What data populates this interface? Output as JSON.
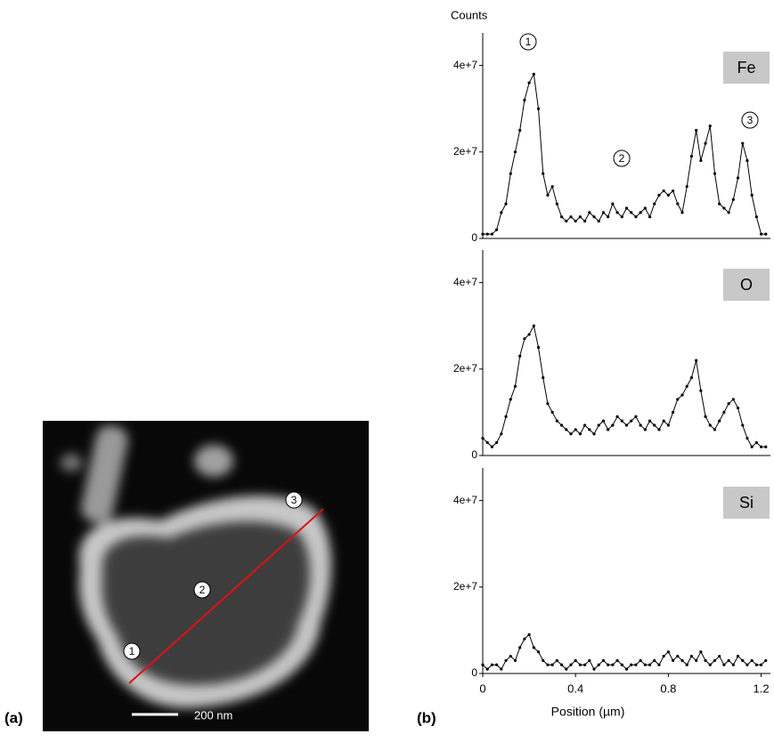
{
  "figure": {
    "panel_a": {
      "label": "(a)",
      "scale_bar": "200 nm",
      "markers": [
        "1",
        "2",
        "3"
      ]
    },
    "panel_b_label": "(b)"
  },
  "chart_data": [
    {
      "type": "line",
      "y_label": "Counts",
      "label": "Fe",
      "annotations": [
        "1",
        "2",
        "3"
      ],
      "color": "#000000",
      "x": [
        0,
        0.02,
        0.04,
        0.06,
        0.08,
        0.1,
        0.12,
        0.14,
        0.16,
        0.18,
        0.2,
        0.22,
        0.24,
        0.26,
        0.28,
        0.3,
        0.32,
        0.34,
        0.36,
        0.38,
        0.4,
        0.42,
        0.44,
        0.46,
        0.48,
        0.5,
        0.52,
        0.54,
        0.56,
        0.58,
        0.6,
        0.62,
        0.64,
        0.66,
        0.68,
        0.7,
        0.72,
        0.74,
        0.76,
        0.78,
        0.8,
        0.82,
        0.84,
        0.86,
        0.88,
        0.9,
        0.92,
        0.94,
        0.96,
        0.98,
        1.0,
        1.02,
        1.04,
        1.06,
        1.08,
        1.1,
        1.12,
        1.14,
        1.16,
        1.18,
        1.2,
        1.22
      ],
      "values": [
        1000000.0,
        1000000.0,
        1000000.0,
        2000000.0,
        6000000.0,
        8000000.0,
        15000000.0,
        20000000.0,
        25000000.0,
        32000000.0,
        36000000.0,
        38000000.0,
        30000000.0,
        15000000.0,
        10000000.0,
        12000000.0,
        8000000.0,
        5000000.0,
        4000000.0,
        5000000.0,
        4000000.0,
        5000000.0,
        4000000.0,
        6000000.0,
        5000000.0,
        4000000.0,
        6000000.0,
        5000000.0,
        8000000.0,
        6000000.0,
        5000000.0,
        7000000.0,
        6000000.0,
        5000000.0,
        6000000.0,
        7000000.0,
        5000000.0,
        8000000.0,
        10000000.0,
        11000000.0,
        10000000.0,
        11000000.0,
        8000000.0,
        6000000.0,
        12000000.0,
        19000000.0,
        25000000.0,
        18000000.0,
        22000000.0,
        26000000.0,
        15000000.0,
        8000000.0,
        7000000.0,
        6000000.0,
        9000000.0,
        14000000.0,
        22000000.0,
        18000000.0,
        10000000.0,
        5000000.0,
        1000000.0,
        1000000.0
      ],
      "xlim": [
        0,
        1.24
      ],
      "ylim": [
        0,
        50000000.0
      ],
      "yticks": [
        0,
        {
          "value": 20000000.0,
          "label": "2e+7"
        },
        {
          "value": 40000000.0,
          "label": "4e+7"
        }
      ]
    },
    {
      "type": "line",
      "label": "O",
      "color": "#000000",
      "x": [
        0,
        0.02,
        0.04,
        0.06,
        0.08,
        0.1,
        0.12,
        0.14,
        0.16,
        0.18,
        0.2,
        0.22,
        0.24,
        0.26,
        0.28,
        0.3,
        0.32,
        0.34,
        0.36,
        0.38,
        0.4,
        0.42,
        0.44,
        0.46,
        0.48,
        0.5,
        0.52,
        0.54,
        0.56,
        0.58,
        0.6,
        0.62,
        0.64,
        0.66,
        0.68,
        0.7,
        0.72,
        0.74,
        0.76,
        0.78,
        0.8,
        0.82,
        0.84,
        0.86,
        0.88,
        0.9,
        0.92,
        0.94,
        0.96,
        0.98,
        1.0,
        1.02,
        1.04,
        1.06,
        1.08,
        1.1,
        1.12,
        1.14,
        1.16,
        1.18,
        1.2,
        1.22
      ],
      "values": [
        4000000.0,
        3000000.0,
        2000000.0,
        3000000.0,
        5000000.0,
        9000000.0,
        13000000.0,
        16000000.0,
        23000000.0,
        27000000.0,
        28000000.0,
        30000000.0,
        25000000.0,
        18000000.0,
        12000000.0,
        10000000.0,
        8000000.0,
        7000000.0,
        6000000.0,
        5000000.0,
        6000000.0,
        5000000.0,
        7000000.0,
        6000000.0,
        5000000.0,
        7000000.0,
        8000000.0,
        6000000.0,
        7000000.0,
        9000000.0,
        8000000.0,
        7000000.0,
        8000000.0,
        9000000.0,
        7000000.0,
        6000000.0,
        8000000.0,
        7000000.0,
        6000000.0,
        8000000.0,
        7000000.0,
        10000000.0,
        13000000.0,
        14000000.0,
        16000000.0,
        18000000.0,
        22000000.0,
        15000000.0,
        9000000.0,
        7000000.0,
        6000000.0,
        8000000.0,
        10000000.0,
        12000000.0,
        13000000.0,
        11000000.0,
        7000000.0,
        4000000.0,
        2000000.0,
        3000000.0,
        2000000.0,
        2000000.0
      ],
      "xlim": [
        0,
        1.24
      ],
      "ylim": [
        0,
        50000000.0
      ],
      "yticks": [
        0,
        {
          "value": 20000000.0,
          "label": "2e+7"
        },
        {
          "value": 40000000.0,
          "label": "4e+7"
        }
      ]
    },
    {
      "type": "line",
      "label": "Si",
      "x_label": "Position (µm)",
      "color": "#000000",
      "x": [
        0,
        0.02,
        0.04,
        0.06,
        0.08,
        0.1,
        0.12,
        0.14,
        0.16,
        0.18,
        0.2,
        0.22,
        0.24,
        0.26,
        0.28,
        0.3,
        0.32,
        0.34,
        0.36,
        0.38,
        0.4,
        0.42,
        0.44,
        0.46,
        0.48,
        0.5,
        0.52,
        0.54,
        0.56,
        0.58,
        0.6,
        0.62,
        0.64,
        0.66,
        0.68,
        0.7,
        0.72,
        0.74,
        0.76,
        0.78,
        0.8,
        0.82,
        0.84,
        0.86,
        0.88,
        0.9,
        0.92,
        0.94,
        0.96,
        0.98,
        1.0,
        1.02,
        1.04,
        1.06,
        1.08,
        1.1,
        1.12,
        1.14,
        1.16,
        1.18,
        1.2,
        1.22
      ],
      "values": [
        2000000.0,
        1000000.0,
        2000000.0,
        2000000.0,
        1000000.0,
        3000000.0,
        4000000.0,
        3000000.0,
        6000000.0,
        8000000.0,
        9000000.0,
        6000000.0,
        5000000.0,
        3000000.0,
        2000000.0,
        2000000.0,
        3000000.0,
        2000000.0,
        1000000.0,
        2000000.0,
        3000000.0,
        2000000.0,
        2000000.0,
        3000000.0,
        1000000.0,
        2000000.0,
        3000000.0,
        2000000.0,
        2000000.0,
        3000000.0,
        2000000.0,
        1000000.0,
        2000000.0,
        2000000.0,
        3000000.0,
        2000000.0,
        2000000.0,
        3000000.0,
        2000000.0,
        4000000.0,
        5000000.0,
        3000000.0,
        4000000.0,
        3000000.0,
        2000000.0,
        4000000.0,
        3000000.0,
        5000000.0,
        3000000.0,
        2000000.0,
        3000000.0,
        4000000.0,
        2000000.0,
        3000000.0,
        2000000.0,
        4000000.0,
        3000000.0,
        2000000.0,
        3000000.0,
        2000000.0,
        2000000.0,
        3000000.0
      ],
      "xlim": [
        0,
        1.24
      ],
      "ylim": [
        0,
        50000000.0
      ],
      "yticks": [
        0,
        {
          "value": 20000000.0,
          "label": "2e+7"
        },
        {
          "value": 40000000.0,
          "label": "4e+7"
        }
      ],
      "xticks": [
        0,
        0.4,
        0.8,
        1.2
      ]
    }
  ]
}
